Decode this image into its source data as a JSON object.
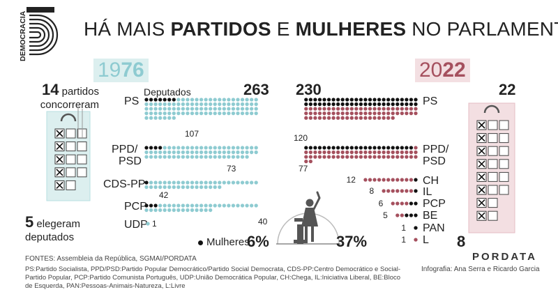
{
  "brand_side": "DEMOCRACIA",
  "title": {
    "p1": "HÁ MAIS ",
    "p2": "PARTIDOS",
    "p3": " E ",
    "p4": "MULHERES",
    "p5": " NO PARLAMENTO"
  },
  "year_left": {
    "a": "19",
    "b": "76"
  },
  "year_right": {
    "a": "20",
    "b": "22"
  },
  "left_panel": {
    "count_bold": "14",
    "line1_rest": " partidos",
    "line2": "concorreram",
    "elected_bold": "5",
    "elected_rest": " elegeram",
    "elected_line2": "deputados"
  },
  "right_panel": {
    "count": "22",
    "elected": "8"
  },
  "deputados_label": "Deputados",
  "total_1976": "263",
  "total_2022": "230",
  "women_legend": "Mulheres",
  "women_pct_1976": "6%",
  "women_pct_2022": "37%",
  "sources": "FONTES: Assembleia da República, SGMAI/PORDATA",
  "footnote": "PS:Partido Socialista, PPD/PSD:Partido Popular Democrático/Partido Social Democrata, CDS-PP:Centro Democrático e Social-Partido Popular, PCP:Partido Comunista Português, UDP:União Democrática Popular, CH:Chega, IL:Iniciativa Liberal, BE:Bloco de Esquerda, PAN:Pessoas-Animais-Natureza, L:Livre",
  "credit": "Infografia: Ana Serra e Ricardo Garcia",
  "logo": "PORDATA",
  "colors": {
    "teal": "#8ecbd1",
    "maroon": "#a5505e",
    "black": "#111111",
    "teal_bg": "#dcefef",
    "pink_bg": "#f3dfe2",
    "gray": "#777777"
  },
  "chart_data": [
    {
      "type": "dot-matrix",
      "title": "1976",
      "parties": [
        {
          "name": "PS",
          "seats": 107,
          "women": 7
        },
        {
          "name": "PPD/ PSD",
          "seats": 73,
          "women": 4
        },
        {
          "name": "CDS-PP",
          "seats": 42,
          "women": 1
        },
        {
          "name": "PCP",
          "seats": 40,
          "women": 3
        },
        {
          "name": "UDP",
          "seats": 1,
          "women": 0
        }
      ],
      "total_seats": 263,
      "women_share": "6%"
    },
    {
      "type": "dot-matrix",
      "title": "2022",
      "parties": [
        {
          "name": "PS",
          "seats": 120,
          "women": 50
        },
        {
          "name": "PPD/ PSD",
          "seats": 77,
          "women": 24
        },
        {
          "name": "CH",
          "seats": 12,
          "women": 1
        },
        {
          "name": "IL",
          "seats": 8,
          "women": 1
        },
        {
          "name": "PCP",
          "seats": 6,
          "women": 2
        },
        {
          "name": "BE",
          "seats": 5,
          "women": 3
        },
        {
          "name": "PAN",
          "seats": 1,
          "women": 1
        },
        {
          "name": "L",
          "seats": 1,
          "women": 0
        }
      ],
      "total_seats": 230,
      "women_share": "37%"
    }
  ],
  "ballots": {
    "1976": {
      "rows": 5,
      "crossed": 5,
      "extra": [
        2,
        2,
        2,
        2,
        1
      ]
    },
    "2022": {
      "rows": 8,
      "crossed": 8,
      "extra": [
        2,
        2,
        2,
        2,
        2,
        2,
        1,
        1
      ]
    }
  }
}
